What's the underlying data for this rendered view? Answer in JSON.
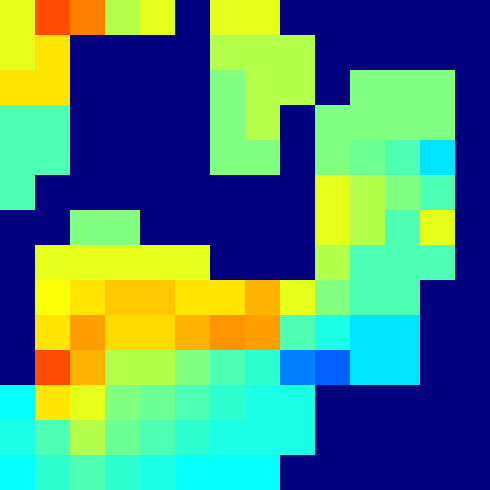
{
  "chart_data": {
    "type": "heatmap",
    "tick_labels": false,
    "color_range": [
      0,
      1
    ],
    "cells": [
      [
        0.6,
        0.8,
        0.75,
        0.55,
        0.6,
        0,
        0.6,
        0.6,
        0,
        0,
        0,
        0,
        0,
        0
      ],
      [
        0.6,
        0.65,
        0,
        0,
        0,
        0,
        0.55,
        0.55,
        0.55,
        0,
        0,
        0,
        0,
        0
      ],
      [
        0.65,
        0.65,
        0,
        0,
        0,
        0,
        0.5,
        0.55,
        0.55,
        0,
        0.5,
        0.5,
        0.5,
        0
      ],
      [
        0.45,
        0.45,
        0,
        0,
        0,
        0,
        0.5,
        0.55,
        0,
        0.5,
        0.5,
        0.5,
        0.5,
        0
      ],
      [
        0.45,
        0.45,
        0,
        0,
        0,
        0,
        0.5,
        0.5,
        0,
        0.5,
        0.48,
        0.45,
        0.35,
        0
      ],
      [
        0.45,
        0,
        0,
        0,
        0,
        0,
        0,
        0,
        0,
        0.6,
        0.55,
        0.5,
        0.45,
        0
      ],
      [
        0,
        0,
        0.5,
        0.5,
        0,
        0,
        0,
        0,
        0,
        0.6,
        0.55,
        0.45,
        0.6,
        0
      ],
      [
        0,
        0.6,
        0.6,
        0.6,
        0.6,
        0.6,
        0,
        0,
        0,
        0.55,
        0.45,
        0.45,
        0.45,
        0
      ],
      [
        0,
        0.62,
        0.65,
        0.68,
        0.68,
        0.65,
        0.65,
        0.7,
        0.6,
        0.5,
        0.45,
        0.45,
        0,
        0
      ],
      [
        0,
        0.65,
        0.72,
        0.66,
        0.66,
        0.7,
        0.73,
        0.72,
        0.45,
        0.4,
        0.35,
        0.35,
        0,
        0
      ],
      [
        0,
        0.8,
        0.7,
        0.55,
        0.55,
        0.5,
        0.45,
        0.42,
        0.25,
        0.22,
        0.35,
        0.35,
        0,
        0
      ],
      [
        0.38,
        0.65,
        0.6,
        0.5,
        0.48,
        0.45,
        0.42,
        0.4,
        0.4,
        0,
        0,
        0,
        0,
        0
      ],
      [
        0.4,
        0.45,
        0.55,
        0.48,
        0.45,
        0.42,
        0.4,
        0.4,
        0.4,
        0,
        0,
        0,
        0,
        0
      ],
      [
        0.38,
        0.42,
        0.45,
        0.42,
        0.4,
        0.38,
        0.38,
        0.38,
        0,
        0,
        0,
        0,
        0,
        0
      ]
    ]
  }
}
